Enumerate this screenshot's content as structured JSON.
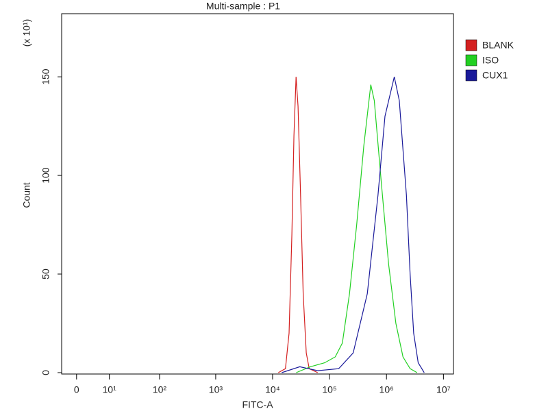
{
  "chart_data": {
    "type": "line",
    "title": "Multi-sample : P1",
    "x_label": "FITC-A",
    "y_label": "Count",
    "y_multiplier": "(x 10¹)",
    "xscale": "symlog",
    "xlim": [
      -3,
      15000000
    ],
    "xticks": [
      0,
      {
        "value": 10,
        "label": "10¹"
      },
      {
        "value": 100,
        "label": "10²"
      },
      {
        "value": 1000,
        "label": "10³"
      },
      {
        "value": 10000,
        "label": "10⁴"
      },
      {
        "value": 100000,
        "label": "10⁵"
      },
      {
        "value": 1000000,
        "label": "10⁶"
      },
      {
        "value": 10000000,
        "label": "10⁷"
      }
    ],
    "ylim": [
      0,
      182
    ],
    "yticks": [
      0,
      50,
      100,
      150
    ],
    "legend": "right",
    "series": [
      {
        "name": "BLANK",
        "color": "#d42020",
        "x": [
          12600,
          16800,
          19500,
          21800,
          23700,
          25800,
          28000,
          31000,
          34500,
          39000,
          44000,
          62000
        ],
        "values": [
          0,
          2,
          20,
          70,
          120,
          150,
          135,
          90,
          40,
          10,
          2,
          0
        ]
      },
      {
        "name": "ISO",
        "color": "#22d022",
        "x": [
          26000,
          46000,
          82000,
          126000,
          168000,
          224000,
          300000,
          400000,
          530000,
          610000,
          820000,
          1090000,
          1460000,
          1950000,
          2600000,
          3450000
        ],
        "values": [
          0,
          3,
          5,
          8,
          15,
          40,
          75,
          115,
          146,
          138,
          95,
          55,
          25,
          8,
          2,
          0
        ]
      },
      {
        "name": "CUX1",
        "color": "#1a1a9a",
        "x": [
          14500,
          30000,
          62000,
          145000,
          260000,
          460000,
          710000,
          940000,
          1370000,
          1680000,
          2240000,
          2600000,
          3000000,
          3600000,
          4600000
        ],
        "values": [
          0,
          3,
          1,
          2,
          10,
          40,
          90,
          130,
          150,
          138,
          90,
          50,
          20,
          5,
          0
        ]
      }
    ]
  }
}
